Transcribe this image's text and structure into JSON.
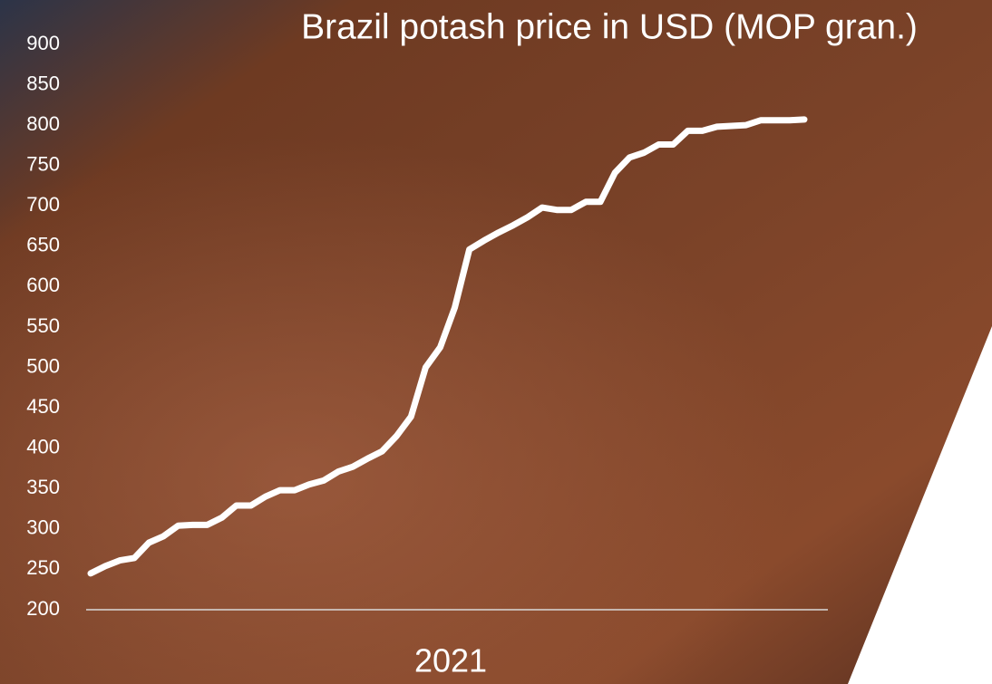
{
  "chart_data": {
    "type": "line",
    "title": "Brazil potash price in USD (MOP gran.)",
    "xlabel": "2021",
    "series": [
      {
        "color": "#ffffff",
        "values": [
          245,
          254,
          261,
          264,
          283,
          291,
          304,
          305,
          305,
          314,
          329,
          329,
          340,
          348,
          348,
          355,
          360,
          371,
          377,
          387,
          396,
          415,
          439,
          500,
          525,
          574,
          646,
          657,
          667,
          676,
          686,
          698,
          695,
          695,
          705,
          705,
          741,
          760,
          766,
          776,
          776,
          793,
          793,
          798,
          799,
          800,
          806,
          806,
          806,
          807
        ]
      }
    ],
    "ylim": [
      200,
      900
    ],
    "yticks": [
      200,
      250,
      300,
      350,
      400,
      450,
      500,
      550,
      600,
      650,
      700,
      750,
      800,
      850,
      900
    ]
  }
}
